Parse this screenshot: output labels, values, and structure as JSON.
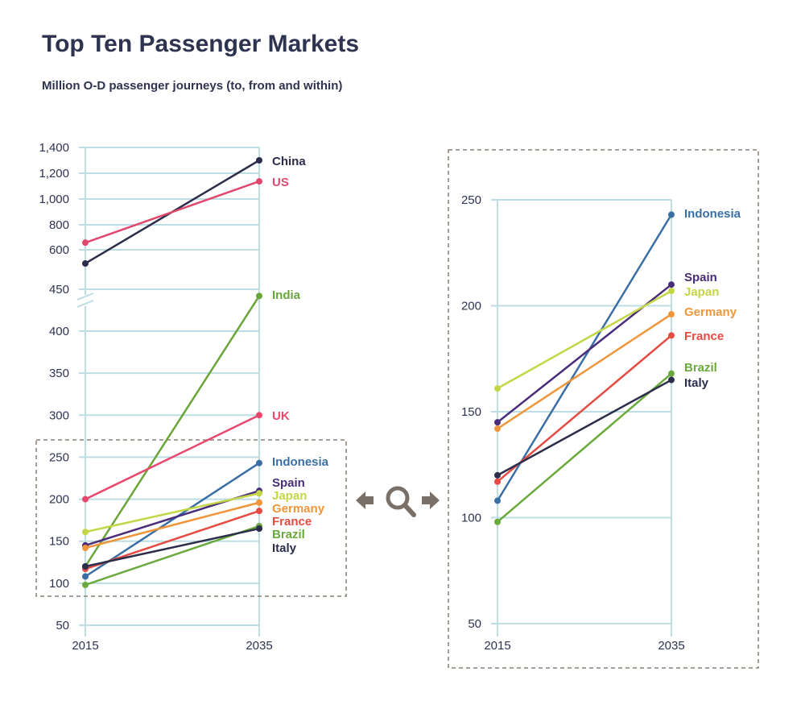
{
  "title": "Top Ten Passenger Markets",
  "subtitle": "Million O-D passenger journeys (to, from and within)",
  "chart_data": [
    {
      "type": "line",
      "panel": "full",
      "x": [
        "2015",
        "2035"
      ],
      "y_ticks_upper": [
        "1,400",
        "1,200",
        "1,000",
        "800",
        "600",
        "450"
      ],
      "y_ticks_lower": [
        "400",
        "350",
        "300",
        "250",
        "200",
        "150",
        "100",
        "50"
      ],
      "axis_break": "between 400 and 450",
      "grid": true,
      "series": [
        {
          "name": "China",
          "values": [
            548,
            1300
          ],
          "color": "#2b2d4a"
        },
        {
          "name": "US",
          "values": [
            657,
            1137
          ],
          "color": "#e0476c"
        },
        {
          "name": "India",
          "values": [
            120,
            442
          ],
          "color": "#6aa53a"
        },
        {
          "name": "UK",
          "values": [
            200,
            300
          ],
          "color": "#e8486e"
        },
        {
          "name": "Indonesia",
          "values": [
            108,
            243
          ],
          "color": "#3a6fa5"
        },
        {
          "name": "Spain",
          "values": [
            145,
            210
          ],
          "color": "#4a2d7a"
        },
        {
          "name": "Japan",
          "values": [
            161,
            207
          ],
          "color": "#c3d645"
        },
        {
          "name": "Germany",
          "values": [
            142,
            196
          ],
          "color": "#f0963a"
        },
        {
          "name": "France",
          "values": [
            117,
            186
          ],
          "color": "#e44b42"
        },
        {
          "name": "Brazil",
          "values": [
            98,
            168
          ],
          "color": "#6aaa3c"
        },
        {
          "name": "Italy",
          "values": [
            120,
            165
          ],
          "color": "#2b2d4a"
        }
      ]
    },
    {
      "type": "line",
      "panel": "zoomed",
      "x": [
        "2015",
        "2035"
      ],
      "y_ticks": [
        "250",
        "200",
        "150",
        "100",
        "50"
      ],
      "ylim": [
        50,
        250
      ],
      "grid": true,
      "series_names": [
        "Indonesia",
        "Spain",
        "Japan",
        "Germany",
        "France",
        "Brazil",
        "Italy"
      ]
    }
  ],
  "colors": {
    "grid": "#bcdde4",
    "text": "#2e3350",
    "box": "#8a7f74",
    "icon": "#7a7068"
  },
  "icons": [
    "arrow-left-icon",
    "magnifier-icon",
    "arrow-right-icon"
  ]
}
